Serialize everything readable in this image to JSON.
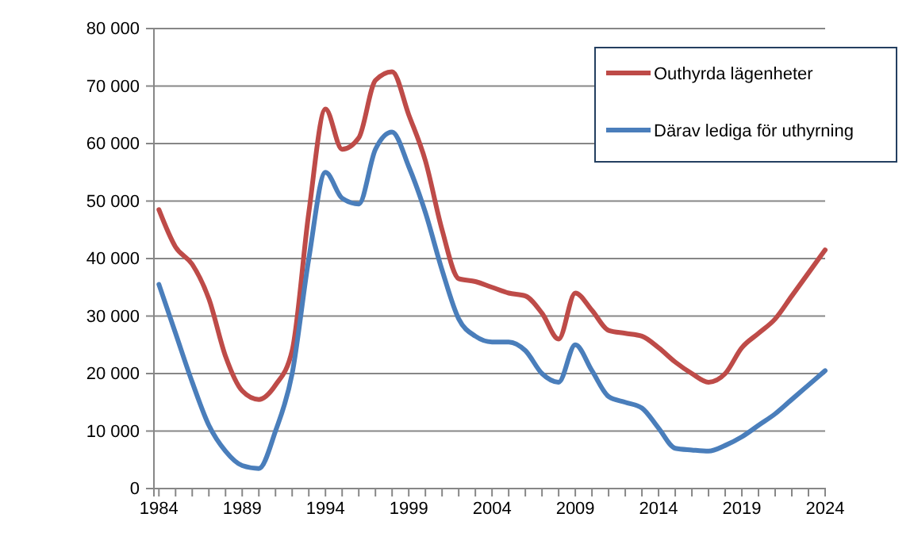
{
  "chart_data": {
    "type": "line",
    "x": [
      1984,
      1985,
      1986,
      1987,
      1988,
      1989,
      1990,
      1991,
      1992,
      1993,
      1994,
      1995,
      1996,
      1997,
      1998,
      1999,
      2000,
      2001,
      2002,
      2003,
      2004,
      2005,
      2006,
      2007,
      2008,
      2009,
      2010,
      2011,
      2012,
      2013,
      2014,
      2015,
      2016,
      2017,
      2018,
      2019,
      2020,
      2021,
      2022,
      2023,
      2024
    ],
    "series": [
      {
        "name": "Outhyrda lägenheter",
        "color": "#be4b48",
        "values": [
          48500,
          42000,
          39000,
          33000,
          23000,
          17000,
          15500,
          18000,
          24000,
          48000,
          66000,
          59000,
          61000,
          71000,
          72500,
          65000,
          57000,
          45000,
          36500,
          36000,
          35000,
          34000,
          33500,
          30500,
          26000,
          34000,
          31000,
          27500,
          27000,
          26500,
          24500,
          22000,
          20000,
          18500,
          20000,
          24500,
          27000,
          29500,
          33500,
          37500,
          41500
        ]
      },
      {
        "name": "Därav lediga för uthyrning",
        "color": "#4a7ebb",
        "values": [
          35500,
          27000,
          18500,
          11000,
          6500,
          4000,
          3500,
          10000,
          20000,
          40000,
          55000,
          50500,
          49500,
          59000,
          62000,
          56000,
          48000,
          38000,
          29500,
          26500,
          25500,
          25500,
          24000,
          20000,
          18500,
          25000,
          20500,
          16000,
          15000,
          14000,
          10500,
          7000,
          6700,
          6500,
          7500,
          9000,
          11000,
          13000,
          15500,
          18000,
          20500
        ]
      }
    ],
    "xlim": [
      1983.7,
      2024
    ],
    "xticks": [
      1984,
      {
        "value": 1985,
        "label": null
      },
      {
        "value": 1986,
        "label": null
      },
      {
        "value": 1987,
        "label": null
      },
      {
        "value": 1988,
        "label": null
      },
      1989,
      {
        "value": 1990,
        "label": null
      },
      {
        "value": 1991,
        "label": null
      },
      {
        "value": 1992,
        "label": null
      },
      {
        "value": 1993,
        "label": null
      },
      1994,
      {
        "value": 1995,
        "label": null
      },
      {
        "value": 1996,
        "label": null
      },
      {
        "value": 1997,
        "label": null
      },
      {
        "value": 1998,
        "label": null
      },
      1999,
      {
        "value": 2000,
        "label": null
      },
      {
        "value": 2001,
        "label": null
      },
      {
        "value": 2002,
        "label": null
      },
      {
        "value": 2003,
        "label": null
      },
      2004,
      {
        "value": 2005,
        "label": null
      },
      {
        "value": 2006,
        "label": null
      },
      {
        "value": 2007,
        "label": null
      },
      {
        "value": 2008,
        "label": null
      },
      2009,
      {
        "value": 2010,
        "label": null
      },
      {
        "value": 2011,
        "label": null
      },
      {
        "value": 2012,
        "label": null
      },
      {
        "value": 2013,
        "label": null
      },
      2014,
      {
        "value": 2015,
        "label": null
      },
      {
        "value": 2016,
        "label": null
      },
      {
        "value": 2017,
        "label": null
      },
      {
        "value": 2018,
        "label": null
      },
      2019,
      {
        "value": 2020,
        "label": null
      },
      {
        "value": 2021,
        "label": null
      },
      {
        "value": 2022,
        "label": null
      },
      {
        "value": 2023,
        "label": null
      },
      2024
    ],
    "ylim": [
      0,
      80000
    ],
    "yticks": [
      0,
      {
        "value": 10000,
        "label": "10 000"
      },
      {
        "value": 20000,
        "label": "20 000"
      },
      {
        "value": 30000,
        "label": "30 000"
      },
      {
        "value": 40000,
        "label": "40 000"
      },
      {
        "value": 50000,
        "label": "50 000"
      },
      {
        "value": 60000,
        "label": "60 000"
      },
      {
        "value": 70000,
        "label": "70 000"
      },
      {
        "value": 80000,
        "label": "80 000"
      }
    ],
    "grid": "y",
    "legend": "top right",
    "marker": "none",
    "line_style": "solid"
  }
}
